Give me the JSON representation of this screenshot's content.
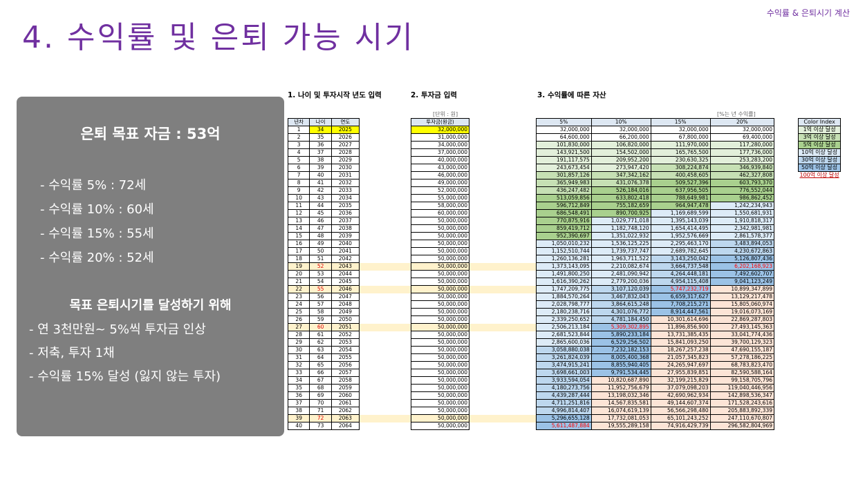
{
  "header_right": "수익률 & 은퇴시기 계산",
  "title": "4. 수익률 및 은퇴 가능 시기",
  "panel": {
    "goal": "은퇴 목표 자금 : 53억",
    "rates": [
      "- 수익률   5% : 72세",
      "- 수익률 10% : 60세",
      "- 수익률 15% : 55세",
      "- 수익률 20% : 52세"
    ],
    "subheading": "목표 은퇴시기를 달성하기 위해",
    "conditions": [
      "- 연 3천만원~ 5%씩 투자금 인상",
      "- 저축, 투자 1채",
      "- 수익률 15% 달성 (잃지 않는 투자)"
    ]
  },
  "sections": {
    "s1": "1. 나이 및 투자시작 년도 입력",
    "s2": "2. 투자금 입력",
    "s3": "3. 수익률에 따른 자산"
  },
  "units": {
    "u1": "[단위 : 원]",
    "u2": "[%는 년 수익률]"
  },
  "headers": {
    "year_no": "년차",
    "age": "나이",
    "year": "연도",
    "invest": "투자금(원금)",
    "r5": "5%",
    "r10": "10%",
    "r15": "15%",
    "r20": "20%"
  },
  "rows": [
    {
      "n": "1",
      "age": "34",
      "year": "2025",
      "inv": "32,000,000",
      "a5": "32,000,000",
      "a10": "32,000,000",
      "a15": "32,000,000",
      "a20": "32,000,000"
    },
    {
      "n": "2",
      "age": "35",
      "year": "2026",
      "inv": "31,000,000",
      "a5": "64,600,000",
      "a10": "66,200,000",
      "a15": "67,800,000",
      "a20": "69,400,000"
    },
    {
      "n": "3",
      "age": "36",
      "year": "2027",
      "inv": "34,000,000",
      "a5": "101,830,000",
      "a10": "106,820,000",
      "a15": "111,970,000",
      "a20": "117,280,000"
    },
    {
      "n": "4",
      "age": "37",
      "year": "2028",
      "inv": "37,000,000",
      "a5": "143,921,500",
      "a10": "154,502,000",
      "a15": "165,765,500",
      "a20": "177,736,000"
    },
    {
      "n": "5",
      "age": "38",
      "year": "2029",
      "inv": "40,000,000",
      "a5": "191,117,575",
      "a10": "209,952,200",
      "a15": "230,630,325",
      "a20": "253,283,200"
    },
    {
      "n": "6",
      "age": "39",
      "year": "2030",
      "inv": "43,000,000",
      "a5": "243,673,454",
      "a10": "273,947,420",
      "a15": "308,224,874",
      "a20": "346,939,840"
    },
    {
      "n": "7",
      "age": "40",
      "year": "2031",
      "inv": "46,000,000",
      "a5": "301,857,126",
      "a10": "347,342,162",
      "a15": "400,458,605",
      "a20": "462,327,808"
    },
    {
      "n": "8",
      "age": "41",
      "year": "2032",
      "inv": "49,000,000",
      "a5": "365,949,983",
      "a10": "431,076,378",
      "a15": "509,527,396",
      "a20": "603,793,370"
    },
    {
      "n": "9",
      "age": "42",
      "year": "2033",
      "inv": "52,000,000",
      "a5": "436,247,482",
      "a10": "526,184,016",
      "a15": "637,956,505",
      "a20": "776,552,044"
    },
    {
      "n": "10",
      "age": "43",
      "year": "2034",
      "inv": "55,000,000",
      "a5": "513,059,856",
      "a10": "633,802,418",
      "a15": "788,649,981",
      "a20": "986,862,452"
    },
    {
      "n": "11",
      "age": "44",
      "year": "2035",
      "inv": "58,000,000",
      "a5": "596,712,849",
      "a10": "755,182,659",
      "a15": "964,947,478",
      "a20": "1,242,234,943"
    },
    {
      "n": "12",
      "age": "45",
      "year": "2036",
      "inv": "60,000,000",
      "a5": "686,548,491",
      "a10": "890,700,925",
      "a15": "1,169,689,599",
      "a20": "1,550,681,931"
    },
    {
      "n": "13",
      "age": "46",
      "year": "2037",
      "inv": "50,000,000",
      "a5": "770,875,916",
      "a10": "1,029,771,018",
      "a15": "1,395,143,039",
      "a20": "1,910,818,317"
    },
    {
      "n": "14",
      "age": "47",
      "year": "2038",
      "inv": "50,000,000",
      "a5": "859,419,712",
      "a10": "1,182,748,120",
      "a15": "1,654,414,495",
      "a20": "2,342,981,981"
    },
    {
      "n": "15",
      "age": "48",
      "year": "2039",
      "inv": "50,000,000",
      "a5": "952,390,697",
      "a10": "1,351,022,932",
      "a15": "1,952,576,669",
      "a20": "2,861,578,377"
    },
    {
      "n": "16",
      "age": "49",
      "year": "2040",
      "inv": "50,000,000",
      "a5": "1,050,010,232",
      "a10": "1,536,125,225",
      "a15": "2,295,463,170",
      "a20": "3,483,894,053"
    },
    {
      "n": "17",
      "age": "50",
      "year": "2041",
      "inv": "50,000,000",
      "a5": "1,152,510,744",
      "a10": "1,739,737,747",
      "a15": "2,689,782,645",
      "a20": "4,230,672,863"
    },
    {
      "n": "18",
      "age": "51",
      "year": "2042",
      "inv": "50,000,000",
      "a5": "1,260,136,281",
      "a10": "1,963,711,522",
      "a15": "3,143,250,042",
      "a20": "5,126,807,436"
    },
    {
      "n": "19",
      "age": "52",
      "year": "2043",
      "inv": "50,000,000",
      "a5": "1,373,143,095",
      "a10": "2,210,082,674",
      "a15": "3,664,737,548",
      "a20": "6,202,168,923"
    },
    {
      "n": "20",
      "age": "53",
      "year": "2044",
      "inv": "50,000,000",
      "a5": "1,491,800,250",
      "a10": "2,481,090,942",
      "a15": "4,264,448,181",
      "a20": "7,492,602,707"
    },
    {
      "n": "21",
      "age": "54",
      "year": "2045",
      "inv": "50,000,000",
      "a5": "1,616,390,262",
      "a10": "2,779,200,036",
      "a15": "4,954,115,408",
      "a20": "9,041,123,249"
    },
    {
      "n": "22",
      "age": "55",
      "year": "2046",
      "inv": "50,000,000",
      "a5": "1,747,209,775",
      "a10": "3,107,120,039",
      "a15": "5,747,232,719",
      "a20": "10,899,347,899"
    },
    {
      "n": "23",
      "age": "56",
      "year": "2047",
      "inv": "50,000,000",
      "a5": "1,884,570,264",
      "a10": "3,467,832,043",
      "a15": "6,659,317,627",
      "a20": "13,129,217,478"
    },
    {
      "n": "24",
      "age": "57",
      "year": "2048",
      "inv": "50,000,000",
      "a5": "2,028,798,777",
      "a10": "3,864,615,248",
      "a15": "7,708,215,271",
      "a20": "15,805,060,974"
    },
    {
      "n": "25",
      "age": "58",
      "year": "2049",
      "inv": "50,000,000",
      "a5": "2,180,238,716",
      "a10": "4,301,076,772",
      "a15": "8,914,447,561",
      "a20": "19,016,073,169"
    },
    {
      "n": "26",
      "age": "59",
      "year": "2050",
      "inv": "50,000,000",
      "a5": "2,339,250,652",
      "a10": "4,781,184,450",
      "a15": "10,301,614,696",
      "a20": "22,869,287,803"
    },
    {
      "n": "27",
      "age": "60",
      "year": "2051",
      "inv": "50,000,000",
      "a5": "2,506,213,184",
      "a10": "5,309,302,895",
      "a15": "11,896,856,900",
      "a20": "27,493,145,363"
    },
    {
      "n": "28",
      "age": "61",
      "year": "2052",
      "inv": "50,000,000",
      "a5": "2,681,523,844",
      "a10": "5,890,233,184",
      "a15": "13,731,385,435",
      "a20": "33,041,774,436"
    },
    {
      "n": "29",
      "age": "62",
      "year": "2053",
      "inv": "50,000,000",
      "a5": "2,865,600,036",
      "a10": "6,529,256,502",
      "a15": "15,841,093,250",
      "a20": "39,700,129,323"
    },
    {
      "n": "30",
      "age": "63",
      "year": "2054",
      "inv": "50,000,000",
      "a5": "3,058,880,038",
      "a10": "7,232,182,153",
      "a15": "18,267,257,238",
      "a20": "47,690,155,187"
    },
    {
      "n": "31",
      "age": "64",
      "year": "2055",
      "inv": "50,000,000",
      "a5": "3,261,824,039",
      "a10": "8,005,400,368",
      "a15": "21,057,345,823",
      "a20": "57,278,186,225"
    },
    {
      "n": "32",
      "age": "65",
      "year": "2056",
      "inv": "50,000,000",
      "a5": "3,474,915,241",
      "a10": "8,855,940,405",
      "a15": "24,265,947,697",
      "a20": "68,783,823,470"
    },
    {
      "n": "33",
      "age": "66",
      "year": "2057",
      "inv": "50,000,000",
      "a5": "3,698,661,003",
      "a10": "9,791,534,445",
      "a15": "27,955,839,851",
      "a20": "82,590,588,164"
    },
    {
      "n": "34",
      "age": "67",
      "year": "2058",
      "inv": "50,000,000",
      "a5": "3,933,594,054",
      "a10": "10,820,687,890",
      "a15": "32,199,215,829",
      "a20": "99,158,705,796"
    },
    {
      "n": "35",
      "age": "68",
      "year": "2059",
      "inv": "50,000,000",
      "a5": "4,180,273,756",
      "a10": "11,952,756,679",
      "a15": "37,079,098,203",
      "a20": "119,040,446,956"
    },
    {
      "n": "36",
      "age": "69",
      "year": "2060",
      "inv": "50,000,000",
      "a5": "4,439,287,444",
      "a10": "13,198,032,346",
      "a15": "42,690,962,934",
      "a20": "142,898,536,347"
    },
    {
      "n": "37",
      "age": "70",
      "year": "2061",
      "inv": "50,000,000",
      "a5": "4,711,251,816",
      "a10": "14,567,835,581",
      "a15": "49,144,607,374",
      "a20": "171,528,243,616"
    },
    {
      "n": "38",
      "age": "71",
      "year": "2062",
      "inv": "50,000,000",
      "a5": "4,996,814,407",
      "a10": "16,074,619,139",
      "a15": "56,566,298,480",
      "a20": "205,883,892,339"
    },
    {
      "n": "39",
      "age": "72",
      "year": "2063",
      "inv": "50,000,000",
      "a5": "5,296,655,128",
      "a10": "17,732,081,053",
      "a15": "65,101,243,252",
      "a20": "247,110,670,807"
    },
    {
      "n": "40",
      "age": "73",
      "year": "2064",
      "inv": "50,000,000",
      "a5": "5,611,487,884",
      "a10": "19,555,289,158",
      "a15": "74,916,429,739",
      "a20": "296,582,804,969"
    }
  ],
  "color_index": {
    "title": "Color Index",
    "items": [
      "1억 이상 달성",
      "3억 이상 달성",
      "5억 이상 달성",
      "10억 이상 달성",
      "30억 이상 달성",
      "50억 이상 달성",
      "100억 이상 달성"
    ],
    "colors": [
      "#e2efda",
      "#c6e0b4",
      "#a9d08e",
      "#ddebf7",
      "#bdd7ee",
      "#9bc2e6",
      "#fce4d6"
    ]
  },
  "highlight_color": "#fff2cc",
  "target_color": "#ff0000"
}
